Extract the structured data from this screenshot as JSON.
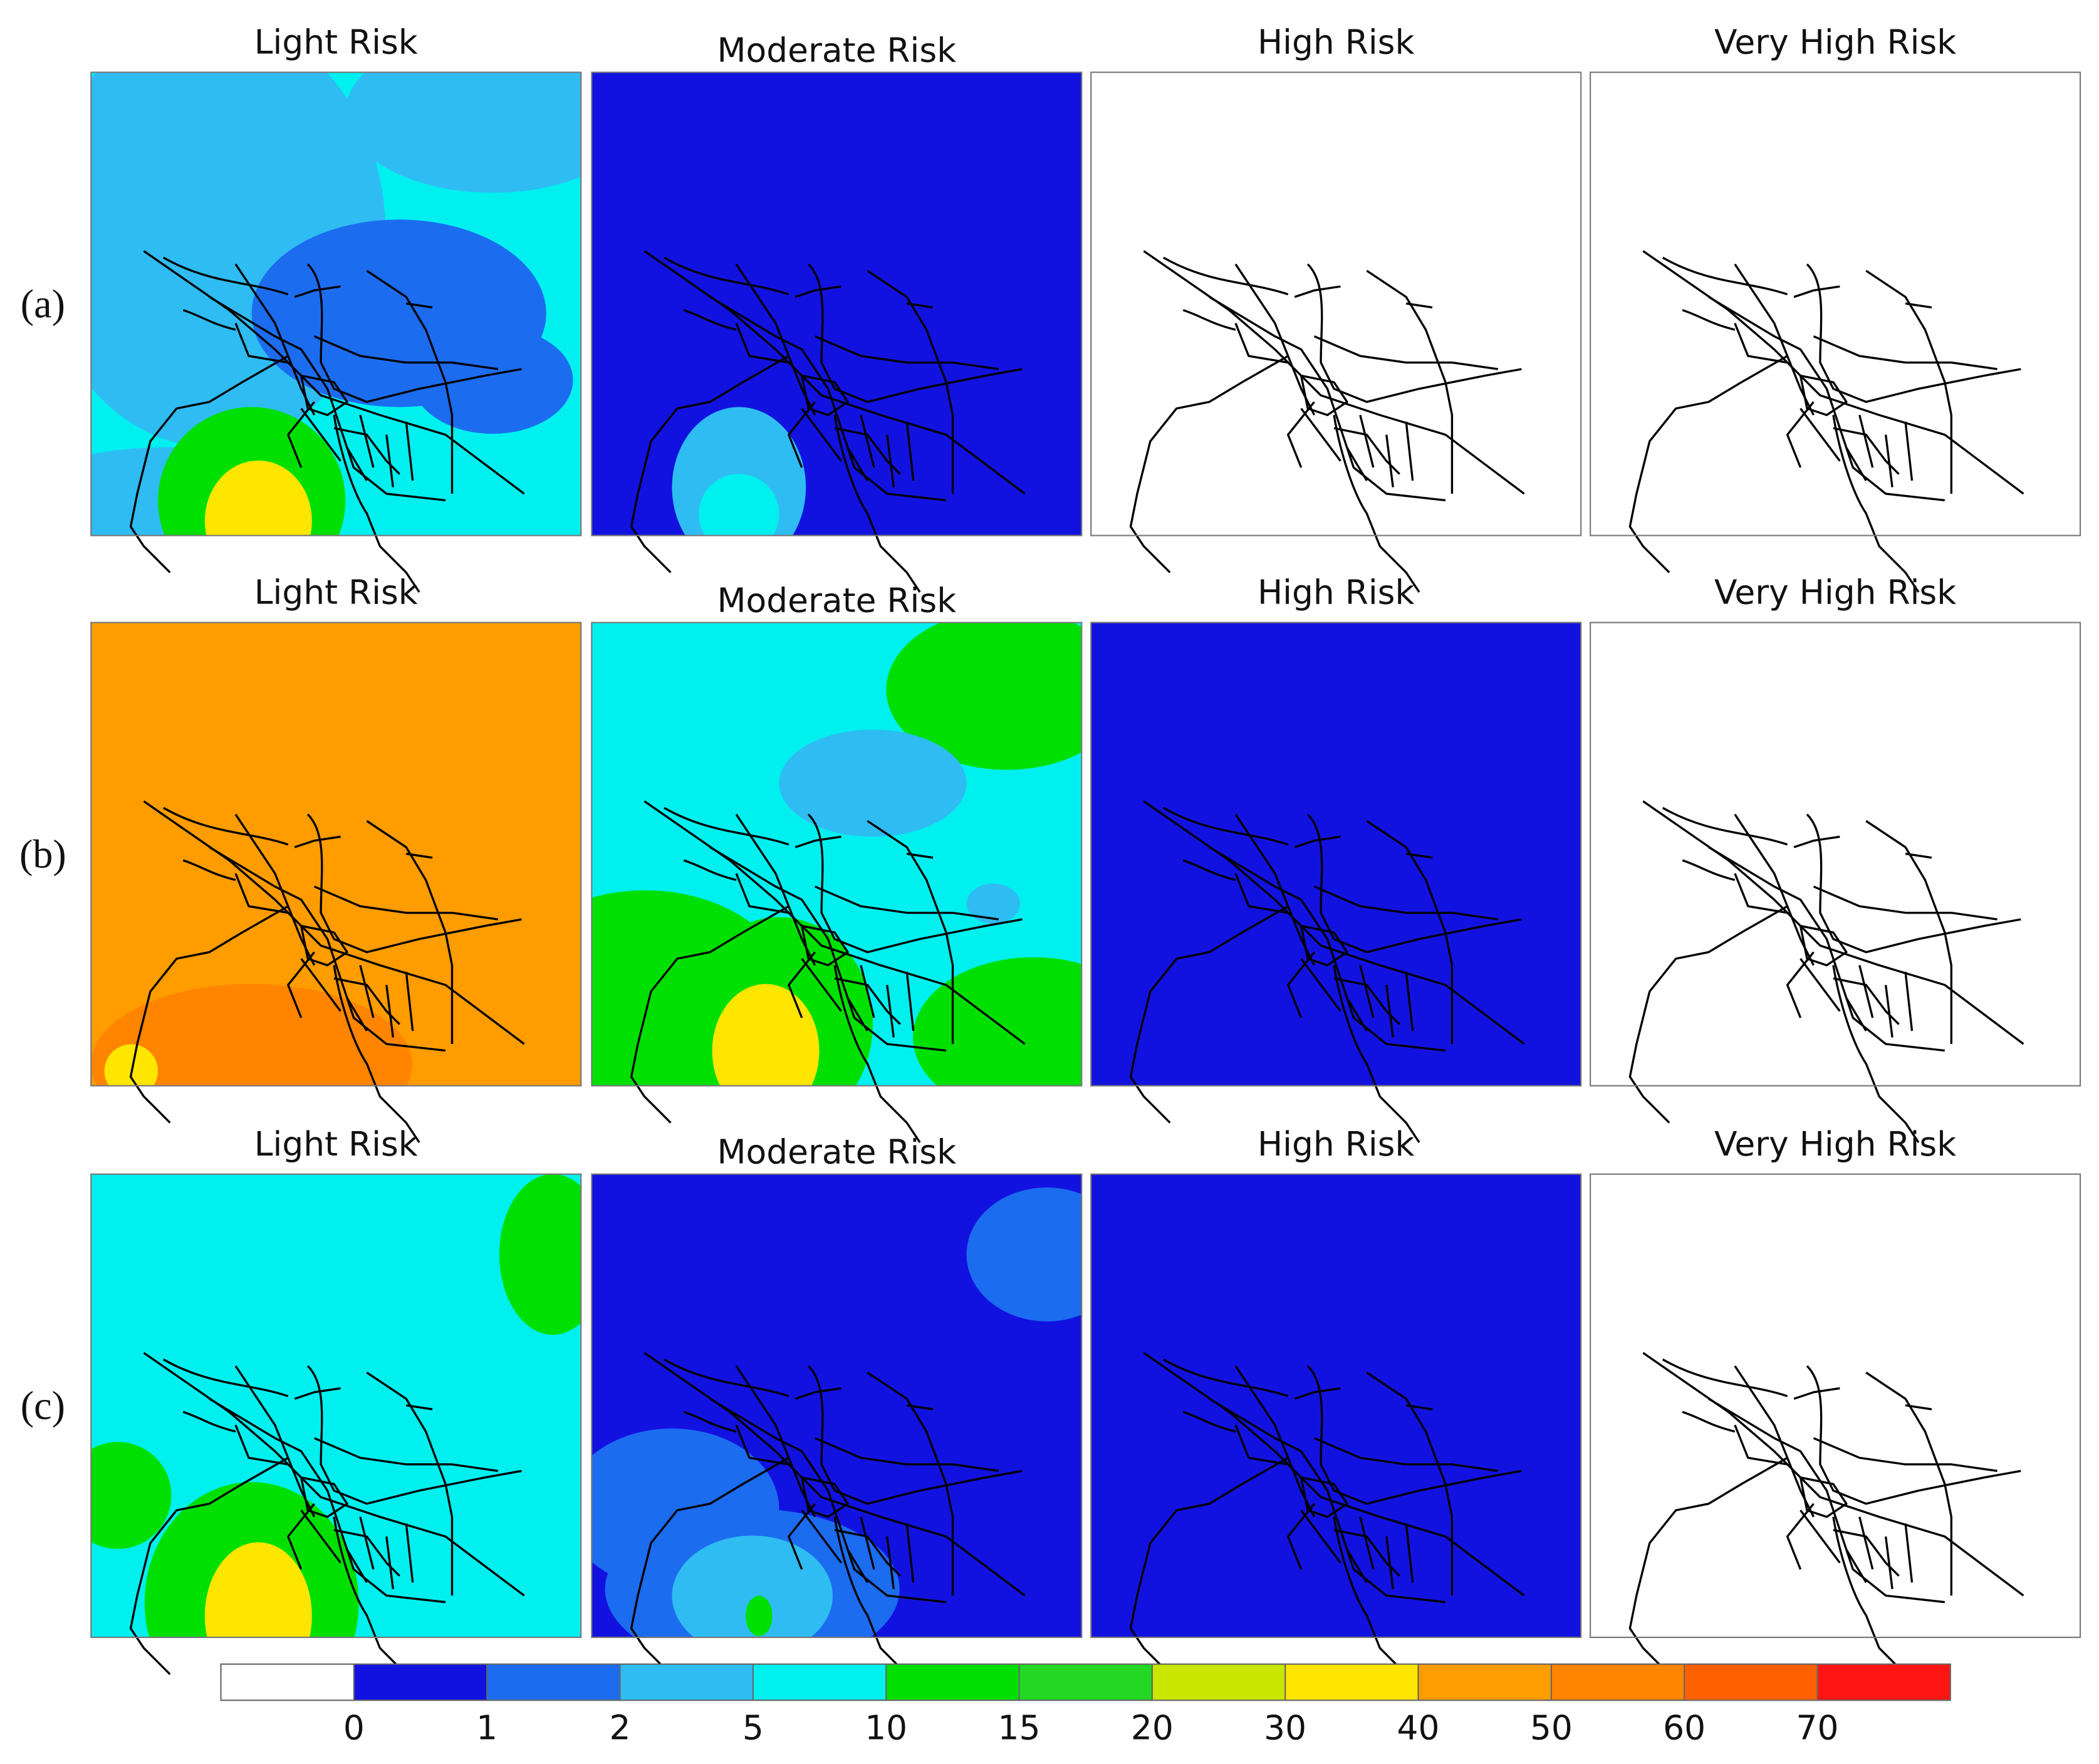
{
  "rows": [
    {
      "label": "(a)",
      "panels": [
        {
          "title": "Light Risk",
          "fill": 4
        },
        {
          "title": "Moderate Risk",
          "fill": 1
        },
        {
          "title": "High Risk",
          "fill": 0
        },
        {
          "title": "Very High Risk",
          "fill": 0
        }
      ]
    },
    {
      "label": "(b)",
      "panels": [
        {
          "title": "Light Risk",
          "fill": 9
        },
        {
          "title": "Moderate Risk",
          "fill": 4
        },
        {
          "title": "High Risk",
          "fill": 1
        },
        {
          "title": "Very High Risk",
          "fill": 0
        }
      ]
    },
    {
      "label": "(c)",
      "panels": [
        {
          "title": "Light Risk",
          "fill": 4
        },
        {
          "title": "Moderate Risk",
          "fill": 1
        },
        {
          "title": "High Risk",
          "fill": 1
        },
        {
          "title": "Very High Risk",
          "fill": 0
        }
      ]
    }
  ],
  "colorbar": {
    "colors": [
      "#ffffff",
      "#1212e0",
      "#1c6cf0",
      "#2fbcf2",
      "#00f0f0",
      "#00e000",
      "#22d822",
      "#c8e600",
      "#ffe600",
      "#ff9c00",
      "#ff8400",
      "#ff6000",
      "#ff1414"
    ],
    "ticks": [
      0,
      1,
      2,
      5,
      10,
      15,
      20,
      30,
      40,
      50,
      60,
      70
    ]
  }
}
